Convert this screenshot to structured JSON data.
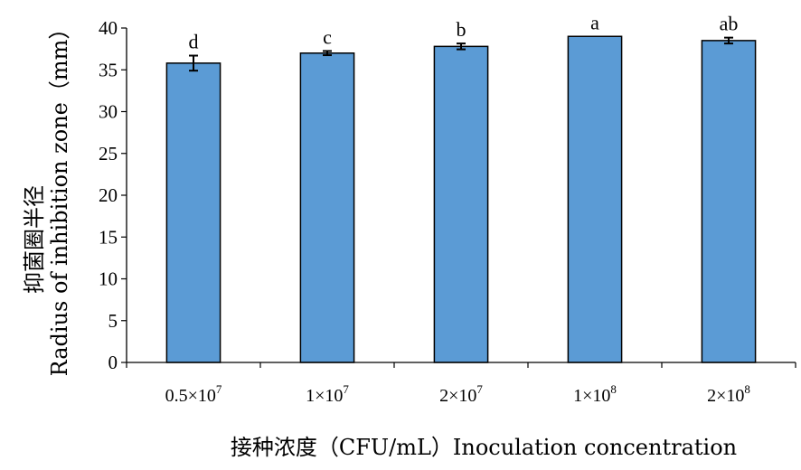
{
  "chart_data": {
    "type": "bar",
    "categories": [
      {
        "base": "0.5×10",
        "exp": "7"
      },
      {
        "base": "1×10",
        "exp": "7"
      },
      {
        "base": "2×10",
        "exp": "7"
      },
      {
        "base": "1×10",
        "exp": "8"
      },
      {
        "base": "2×10",
        "exp": "8"
      }
    ],
    "values": [
      35.8,
      37.0,
      37.8,
      39.0,
      38.5
    ],
    "errors": [
      0.9,
      0.25,
      0.35,
      0.0,
      0.35
    ],
    "significance_labels": [
      "d",
      "c",
      "b",
      "a",
      "ab"
    ],
    "ylabel_line1": "抑菌圈半径",
    "ylabel_line2": "Radius of inhibition zone（mm）",
    "xlabel": "接种浓度（CFU/mL）Inoculation concentration",
    "ylim": [
      0,
      40
    ],
    "yticks": [
      0,
      5,
      10,
      15,
      20,
      25,
      30,
      35,
      40
    ],
    "grid": false,
    "bar_color": "#5b9bd5"
  }
}
